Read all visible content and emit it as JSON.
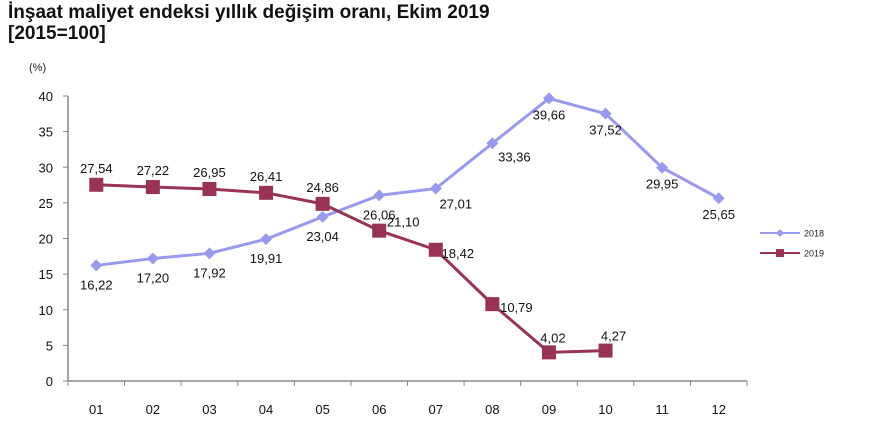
{
  "title": {
    "line1": "İnşaat maliyet endeksi yıllık değişim oranı, Ekim 2019",
    "line2": "[2015=100]"
  },
  "unit_label": "(%)",
  "chart_data": {
    "type": "line",
    "title": "İnşaat maliyet endeksi yıllık değişim oranı, Ekim 2019 [2015=100]",
    "xlabel": "",
    "ylabel": "(%)",
    "categories": [
      "01",
      "02",
      "03",
      "04",
      "05",
      "06",
      "07",
      "08",
      "09",
      "10",
      "11",
      "12"
    ],
    "series": [
      {
        "name": "2018",
        "color": "#9999ee",
        "marker": "diamond",
        "values": [
          16.22,
          17.2,
          17.92,
          19.91,
          23.04,
          26.06,
          27.01,
          33.36,
          39.66,
          37.52,
          29.95,
          25.65
        ],
        "labels": [
          "16,22",
          "17,20",
          "17,92",
          "19,91",
          "23,04",
          "26,06",
          "27,01",
          "33,36",
          "39,66",
          "37,52",
          "29,95",
          "25,65"
        ]
      },
      {
        "name": "2019",
        "color": "#993355",
        "marker": "square",
        "values": [
          27.54,
          27.22,
          26.95,
          26.41,
          24.86,
          21.1,
          18.42,
          10.79,
          4.02,
          4.27,
          null,
          null
        ],
        "labels": [
          "27,54",
          "27,22",
          "26,95",
          "26,41",
          "24,86",
          "21,10",
          "18,42",
          "10,79",
          "4,02",
          "4,27",
          null,
          null
        ]
      }
    ],
    "ylim": [
      0,
      40
    ],
    "yticks": [
      "0",
      "5",
      "10",
      "15",
      "20",
      "25",
      "30",
      "35",
      "40"
    ],
    "grid": false,
    "legend_position": "right"
  }
}
